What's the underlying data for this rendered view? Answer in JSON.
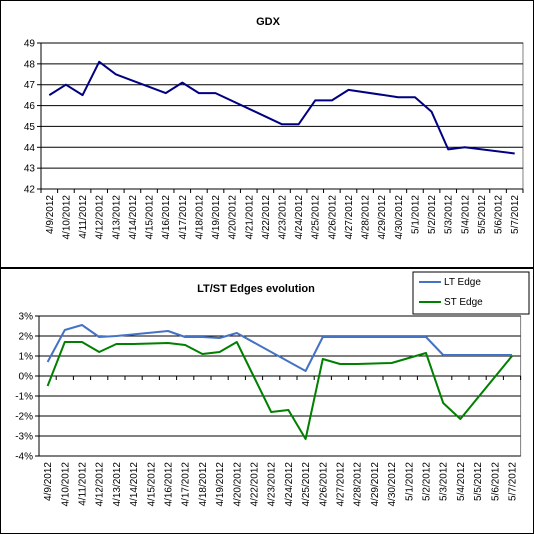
{
  "chart_data": [
    {
      "type": "line",
      "title": "GDX",
      "xlabel": "",
      "ylabel": "",
      "categories": [
        "4/9/2012",
        "4/10/2012",
        "4/11/2012",
        "4/12/2012",
        "4/13/2012",
        "4/14/2012",
        "4/15/2012",
        "4/16/2012",
        "4/17/2012",
        "4/18/2012",
        "4/19/2012",
        "4/20/2012",
        "4/21/2012",
        "4/22/2012",
        "4/23/2012",
        "4/24/2012",
        "4/25/2012",
        "4/26/2012",
        "4/27/2012",
        "4/28/2012",
        "4/29/2012",
        "4/30/2012",
        "5/1/2012",
        "5/2/2012",
        "5/3/2012",
        "5/4/2012",
        "5/5/2012",
        "5/6/2012",
        "5/7/2012"
      ],
      "ylim": [
        42,
        49
      ],
      "yticks": [
        "42",
        "43",
        "44",
        "45",
        "46",
        "47",
        "48",
        "49"
      ],
      "grid": true,
      "series": [
        {
          "name": "",
          "color": "#000080",
          "points": [
            [
              0,
              46.5
            ],
            [
              1,
              47.0
            ],
            [
              2,
              46.5
            ],
            [
              3,
              48.1
            ],
            [
              4,
              47.5
            ],
            [
              7,
              46.6
            ],
            [
              8,
              47.1
            ],
            [
              9,
              46.6
            ],
            [
              10,
              46.6
            ],
            [
              14,
              45.1
            ],
            [
              15,
              45.1
            ],
            [
              16,
              46.25
            ],
            [
              17,
              46.25
            ],
            [
              18,
              46.75
            ],
            [
              21,
              46.4
            ],
            [
              22,
              46.4
            ],
            [
              23,
              45.7
            ],
            [
              24,
              43.9
            ],
            [
              25,
              44.0
            ],
            [
              28,
              43.7
            ]
          ]
        }
      ]
    },
    {
      "type": "line",
      "title": "LT/ST Edges evolution",
      "xlabel": "",
      "ylabel": "",
      "categories": [
        "4/9/2012",
        "4/10/2012",
        "4/11/2012",
        "4/12/2012",
        "4/13/2012",
        "4/14/2012",
        "4/15/2012",
        "4/16/2012",
        "4/17/2012",
        "4/18/2012",
        "4/19/2012",
        "4/20/2012",
        "4/22/2012",
        "4/23/2012",
        "4/24/2012",
        "4/25/2012",
        "4/26/2012",
        "4/27/2012",
        "4/28/2012",
        "4/29/2012",
        "4/30/2012",
        "5/1/2012",
        "5/2/2012",
        "5/3/2012",
        "5/4/2012",
        "5/5/2012",
        "5/6/2012",
        "5/7/2012"
      ],
      "ylim": [
        -4,
        3
      ],
      "yticks": [
        "-4%",
        "-3%",
        "-2%",
        "-1%",
        "0%",
        "1%",
        "2%",
        "3%"
      ],
      "grid": true,
      "legend_position": "top-right",
      "series": [
        {
          "name": "LT Edge",
          "color": "#4472C4",
          "points": [
            [
              0,
              0.7
            ],
            [
              1,
              2.3
            ],
            [
              2,
              2.55
            ],
            [
              3,
              1.95
            ],
            [
              4,
              2.0
            ],
            [
              7,
              2.25
            ],
            [
              8,
              1.95
            ],
            [
              9,
              1.95
            ],
            [
              10,
              1.9
            ],
            [
              11,
              2.15
            ],
            [
              15,
              0.25
            ],
            [
              16,
              1.95
            ],
            [
              21,
              1.95
            ],
            [
              22,
              1.95
            ],
            [
              23,
              1.05
            ],
            [
              27,
              1.05
            ]
          ]
        },
        {
          "name": "ST Edge",
          "color": "#008000",
          "points": [
            [
              0,
              -0.5
            ],
            [
              1,
              1.7
            ],
            [
              2,
              1.7
            ],
            [
              3,
              1.2
            ],
            [
              4,
              1.6
            ],
            [
              5,
              1.6
            ],
            [
              7,
              1.65
            ],
            [
              8,
              1.55
            ],
            [
              9,
              1.1
            ],
            [
              10,
              1.2
            ],
            [
              11,
              1.7
            ],
            [
              12,
              -0.05
            ],
            [
              13,
              -1.8
            ],
            [
              14,
              -1.7
            ],
            [
              15,
              -3.15
            ],
            [
              16,
              0.85
            ],
            [
              17,
              0.6
            ],
            [
              18,
              0.6
            ],
            [
              20,
              0.65
            ],
            [
              22,
              1.15
            ],
            [
              23,
              -1.35
            ],
            [
              24,
              -2.15
            ],
            [
              27,
              1.0
            ]
          ]
        }
      ]
    }
  ]
}
